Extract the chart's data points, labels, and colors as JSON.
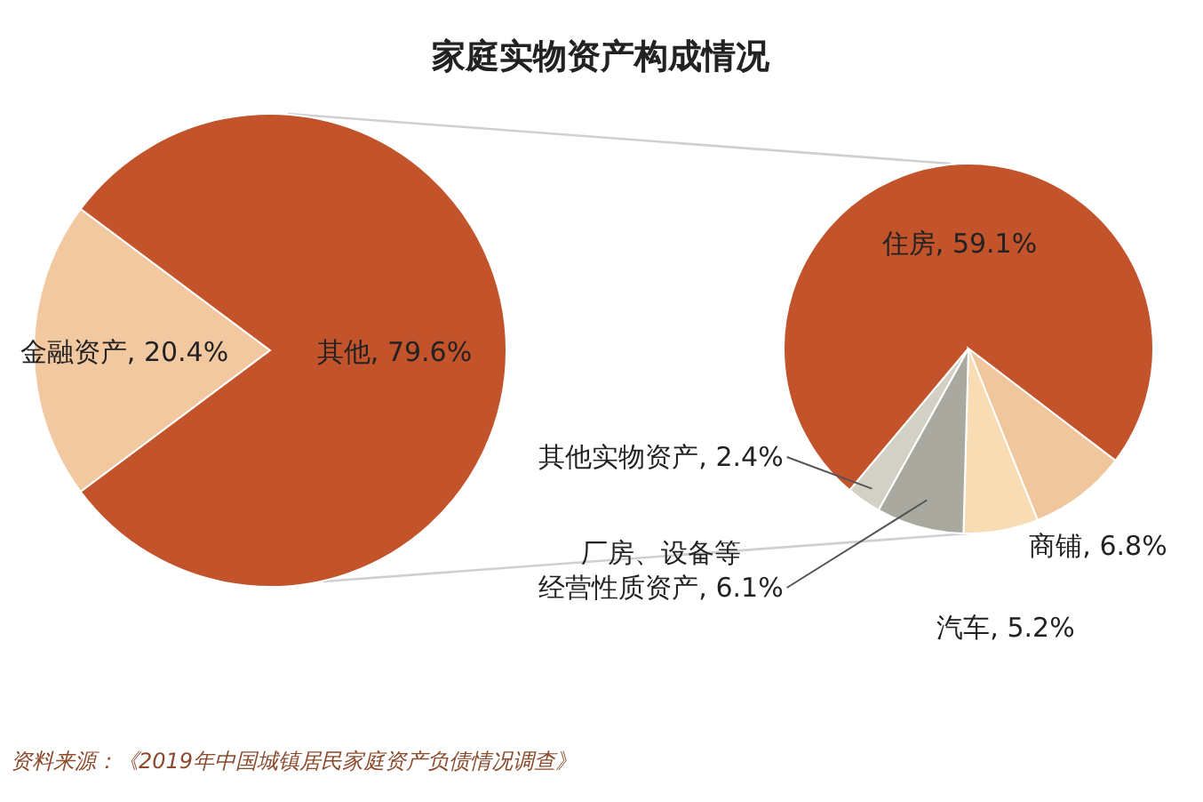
{
  "chart_data": [
    {
      "type": "pie",
      "title": "家庭实物资产构成情况",
      "categories": [
        "金融资产",
        "其他"
      ],
      "values": [
        20.4,
        79.6
      ],
      "value_labels": [
        "20.4%",
        "79.6%"
      ],
      "colors": [
        "#f2c8a0",
        "#c2532b"
      ],
      "legend": false,
      "annotations": [
        "资料来源：《2019年中国城镇居民家庭资产负债情况调查》"
      ]
    },
    {
      "type": "pie",
      "categories": [
        "住房",
        "商铺",
        "汽车",
        "厂房、设备等经营性质资产",
        "其他实物资产"
      ],
      "values": [
        59.1,
        6.8,
        5.2,
        6.1,
        2.4
      ],
      "value_labels": [
        "59.1%",
        "6.8%",
        "5.2%",
        "6.1%",
        "2.4%"
      ],
      "colors": [
        "#c2532b",
        "#f0c69c",
        "#f7dcb4",
        "#aaa99f",
        "#d3d1c5"
      ],
      "legend": false
    }
  ]
}
